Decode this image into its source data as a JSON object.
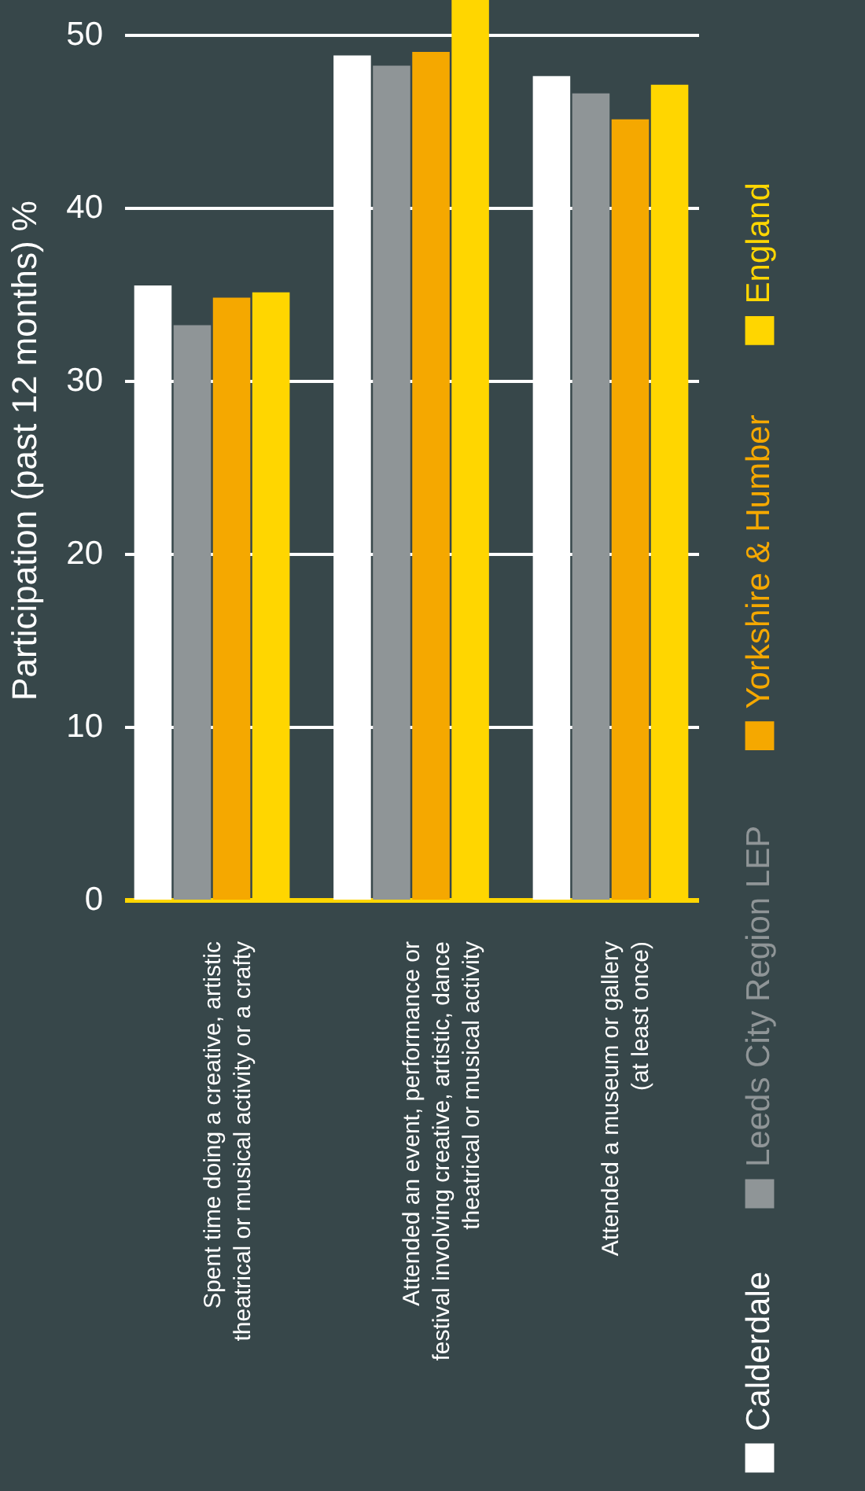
{
  "chart_data": {
    "type": "bar",
    "ylabel": "Participation (past 12 months) %",
    "categories": [
      "Spent time doing a creative, artistic\ntheatrical or musical activity or a crafty",
      "Attended an event, performance or\nfestival involving creative, artistic, dance\ntheatrical or musical activity",
      "Attended a museum or gallery\n(at least once)"
    ],
    "series": [
      {
        "name": "Calderdale",
        "color": "#ffffff",
        "values": [
          35.5,
          48.8,
          47.6
        ]
      },
      {
        "name": "Leeds City Region LEP",
        "color": "#8f9597",
        "values": [
          33.2,
          48.2,
          46.6
        ]
      },
      {
        "name": "Yorkshire & Humber",
        "color": "#f5a800",
        "values": [
          34.8,
          49.0,
          45.1
        ]
      },
      {
        "name": "England",
        "color": "#ffd600",
        "values": [
          35.1,
          52,
          47.1
        ]
      }
    ],
    "ylim": [
      0,
      52
    ],
    "yticks": [
      0,
      10,
      20,
      30,
      40,
      50
    ],
    "grid": "y",
    "legend": "right"
  }
}
